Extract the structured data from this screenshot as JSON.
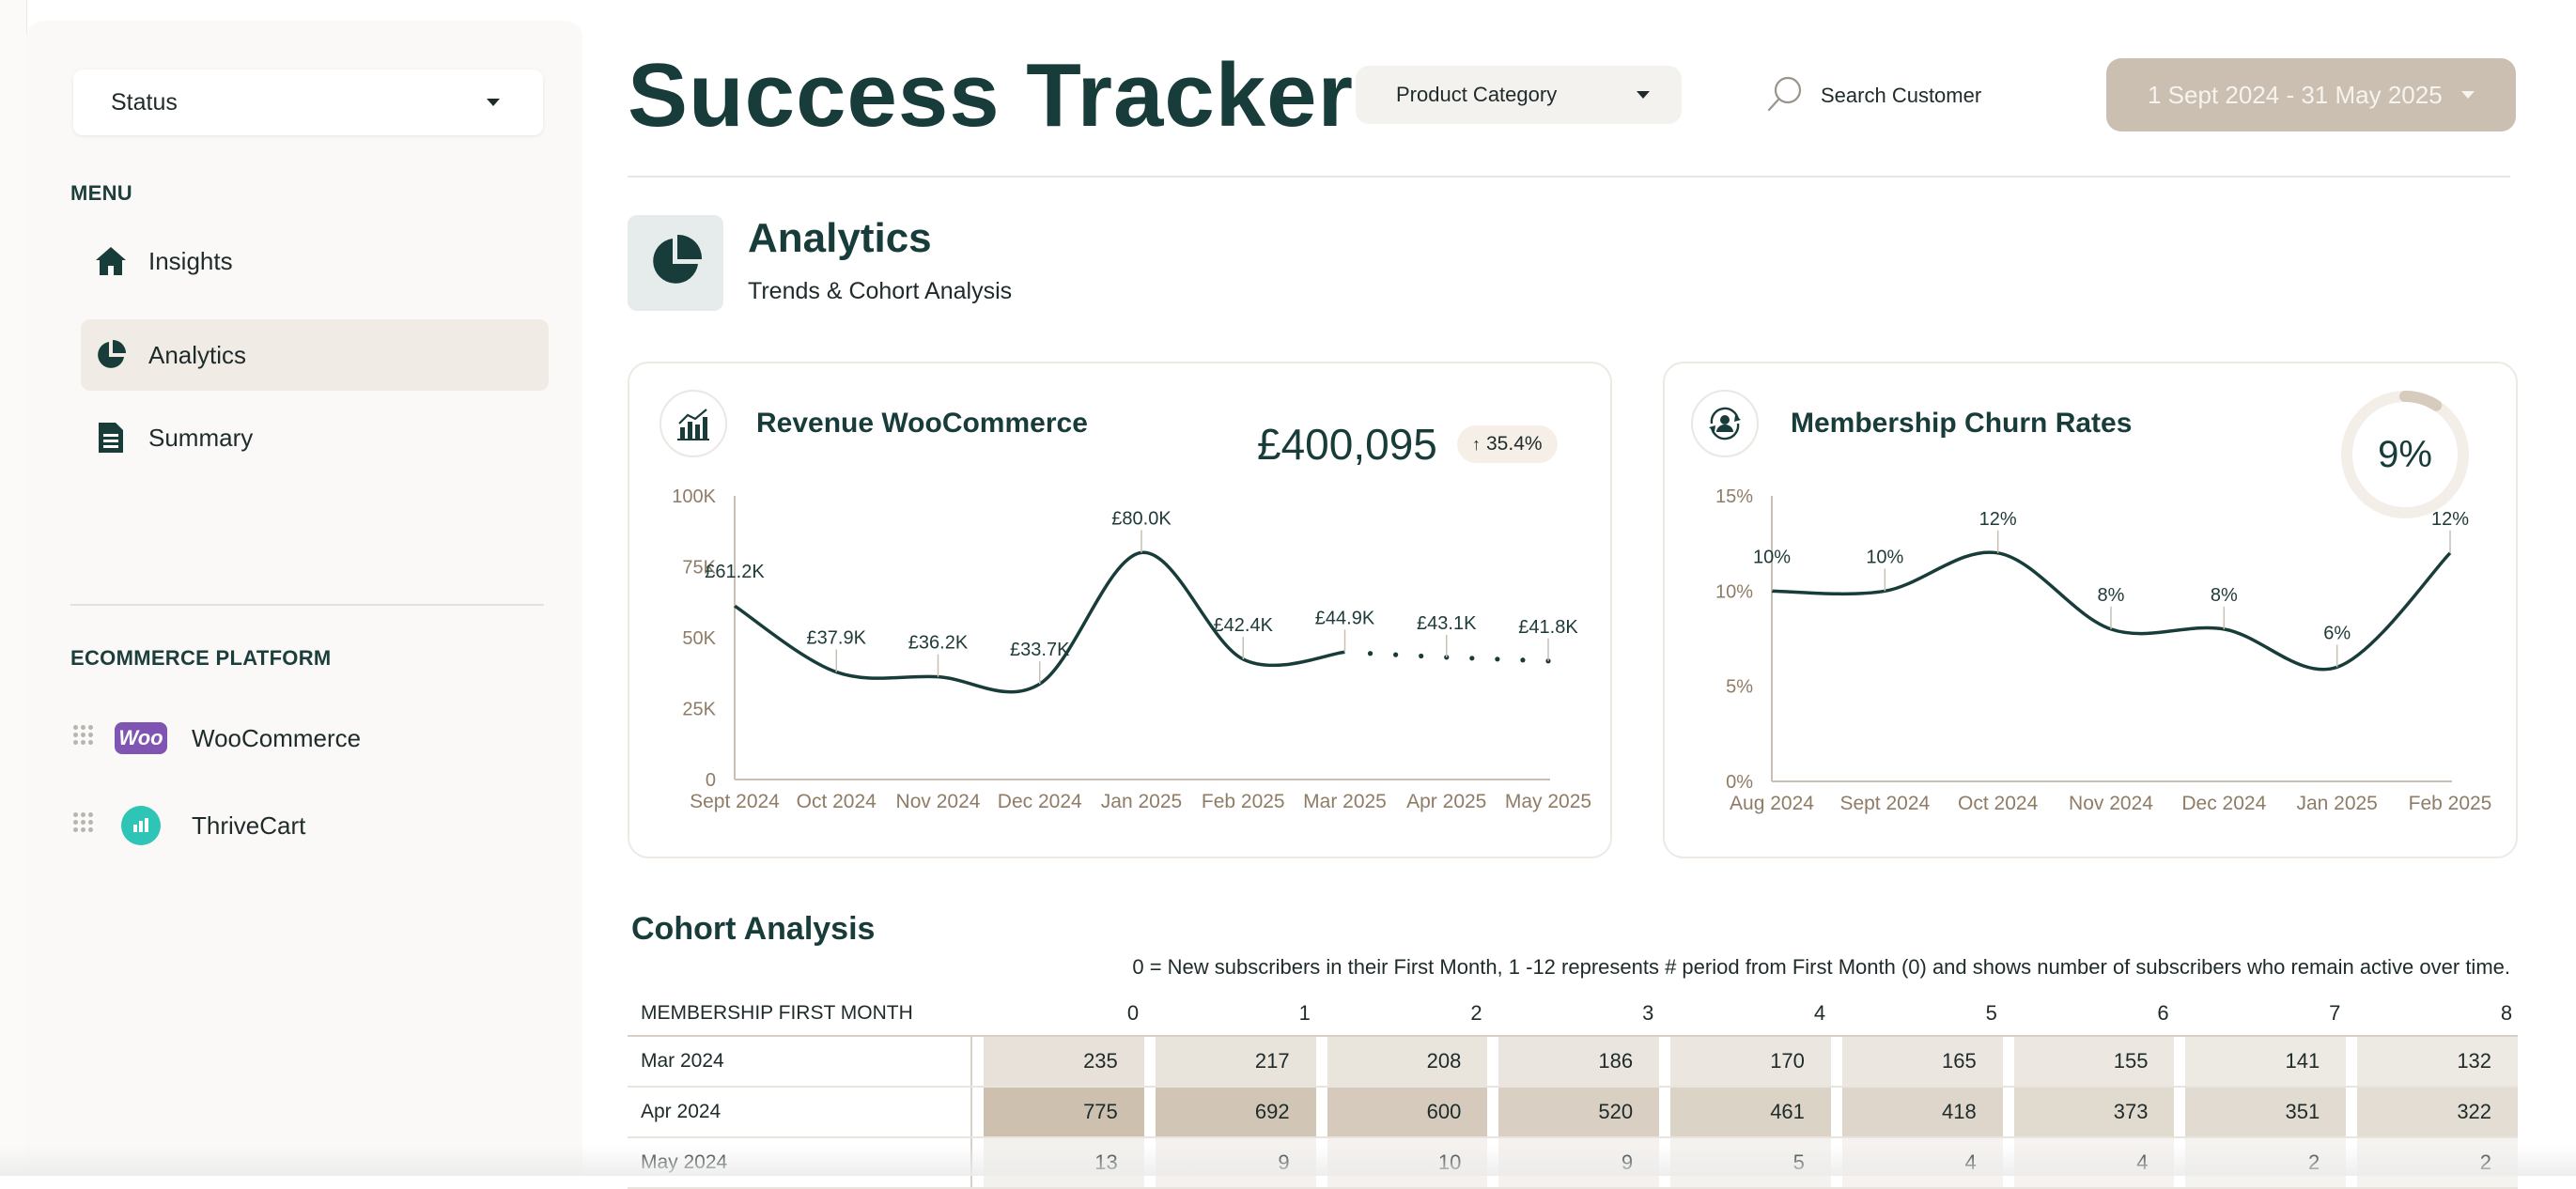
{
  "sidebar": {
    "status_select": "Status",
    "menu_heading": "MENU",
    "menu_items": [
      {
        "label": "Insights",
        "icon": "home-icon"
      },
      {
        "label": "Analytics",
        "icon": "pie-chart-icon",
        "active": true
      },
      {
        "label": "Summary",
        "icon": "document-icon"
      }
    ],
    "platform_heading": "ECOMMERCE PLATFORM",
    "platforms": [
      {
        "label": "WooCommerce",
        "logo_text": "Woo",
        "color": "#7f54b3"
      },
      {
        "label": "ThriveCart",
        "color": "#2ec4b6"
      }
    ]
  },
  "header": {
    "title": "Success Tracker",
    "product_category": "Product Category",
    "search_label": "Search Customer",
    "date_range": "1 Sept 2024 - 31 May 2025"
  },
  "analytics": {
    "title": "Analytics",
    "subtitle": "Trends & Cohort Analysis"
  },
  "revenue_card": {
    "title": "Revenue WooCommerce",
    "total": "£400,095",
    "change": "35.4%"
  },
  "churn_card": {
    "title": "Membership Churn Rates",
    "gauge_label": "9%",
    "gauge_value": 0.09
  },
  "chart_data": [
    {
      "type": "line",
      "title": "Revenue WooCommerce",
      "categories": [
        "Sept 2024",
        "Oct 2024",
        "Nov 2024",
        "Dec 2024",
        "Jan 2025",
        "Feb 2025",
        "Mar 2025",
        "Apr 2025",
        "May 2025"
      ],
      "values": [
        61200,
        37900,
        36200,
        33700,
        80000,
        42400,
        44900,
        43100,
        41800
      ],
      "data_labels": [
        "£61.2K",
        "£37.9K",
        "£36.2K",
        "£33.7K",
        "£80.0K",
        "£42.4K",
        "£44.9K",
        "£43.1K",
        "£41.8K"
      ],
      "projected_from_index": 6,
      "yticks": [
        "0",
        "25K",
        "50K",
        "75K",
        "100K"
      ],
      "ylim": [
        0,
        100000
      ],
      "color": "#173c39"
    },
    {
      "type": "line",
      "title": "Membership Churn Rates",
      "categories": [
        "Aug 2024",
        "Sept 2024",
        "Oct 2024",
        "Nov 2024",
        "Dec 2024",
        "Jan 2025",
        "Feb 2025"
      ],
      "values": [
        10,
        10,
        12,
        8,
        8,
        6,
        12
      ],
      "data_labels": [
        "10%",
        "10%",
        "12%",
        "8%",
        "8%",
        "6%",
        "12%"
      ],
      "yticks": [
        "0%",
        "5%",
        "10%",
        "15%"
      ],
      "ylim": [
        0,
        15
      ],
      "color": "#173c39"
    }
  ],
  "cohort": {
    "title": "Cohort Analysis",
    "note": "0 = New subscribers in their First Month, 1 -12  represents # period from First Month (0) and shows number of subscribers who remain active over time.",
    "first_col_header": "MEMBERSHIP FIRST MONTH",
    "columns": [
      "0",
      "1",
      "2",
      "3",
      "4",
      "5",
      "6",
      "7",
      "8"
    ],
    "rows": [
      {
        "month": "Mar 2024",
        "values": [
          "235",
          "217",
          "208",
          "186",
          "170",
          "165",
          "155",
          "141",
          "132"
        ],
        "levels": [
          0.35,
          0.32,
          0.3,
          0.27,
          0.25,
          0.24,
          0.22,
          0.2,
          0.19
        ]
      },
      {
        "month": "Apr 2024",
        "values": [
          "775",
          "692",
          "600",
          "520",
          "461",
          "418",
          "373",
          "351",
          "322"
        ],
        "levels": [
          1.0,
          0.9,
          0.8,
          0.7,
          0.62,
          0.56,
          0.5,
          0.47,
          0.43
        ]
      },
      {
        "month": "May 2024",
        "values": [
          "13",
          "9",
          "10",
          "9",
          "5",
          "4",
          "4",
          "2",
          "2"
        ],
        "levels": [
          0.04,
          0.03,
          0.03,
          0.03,
          0.02,
          0.01,
          0.01,
          0.0,
          0.0
        ]
      }
    ]
  }
}
